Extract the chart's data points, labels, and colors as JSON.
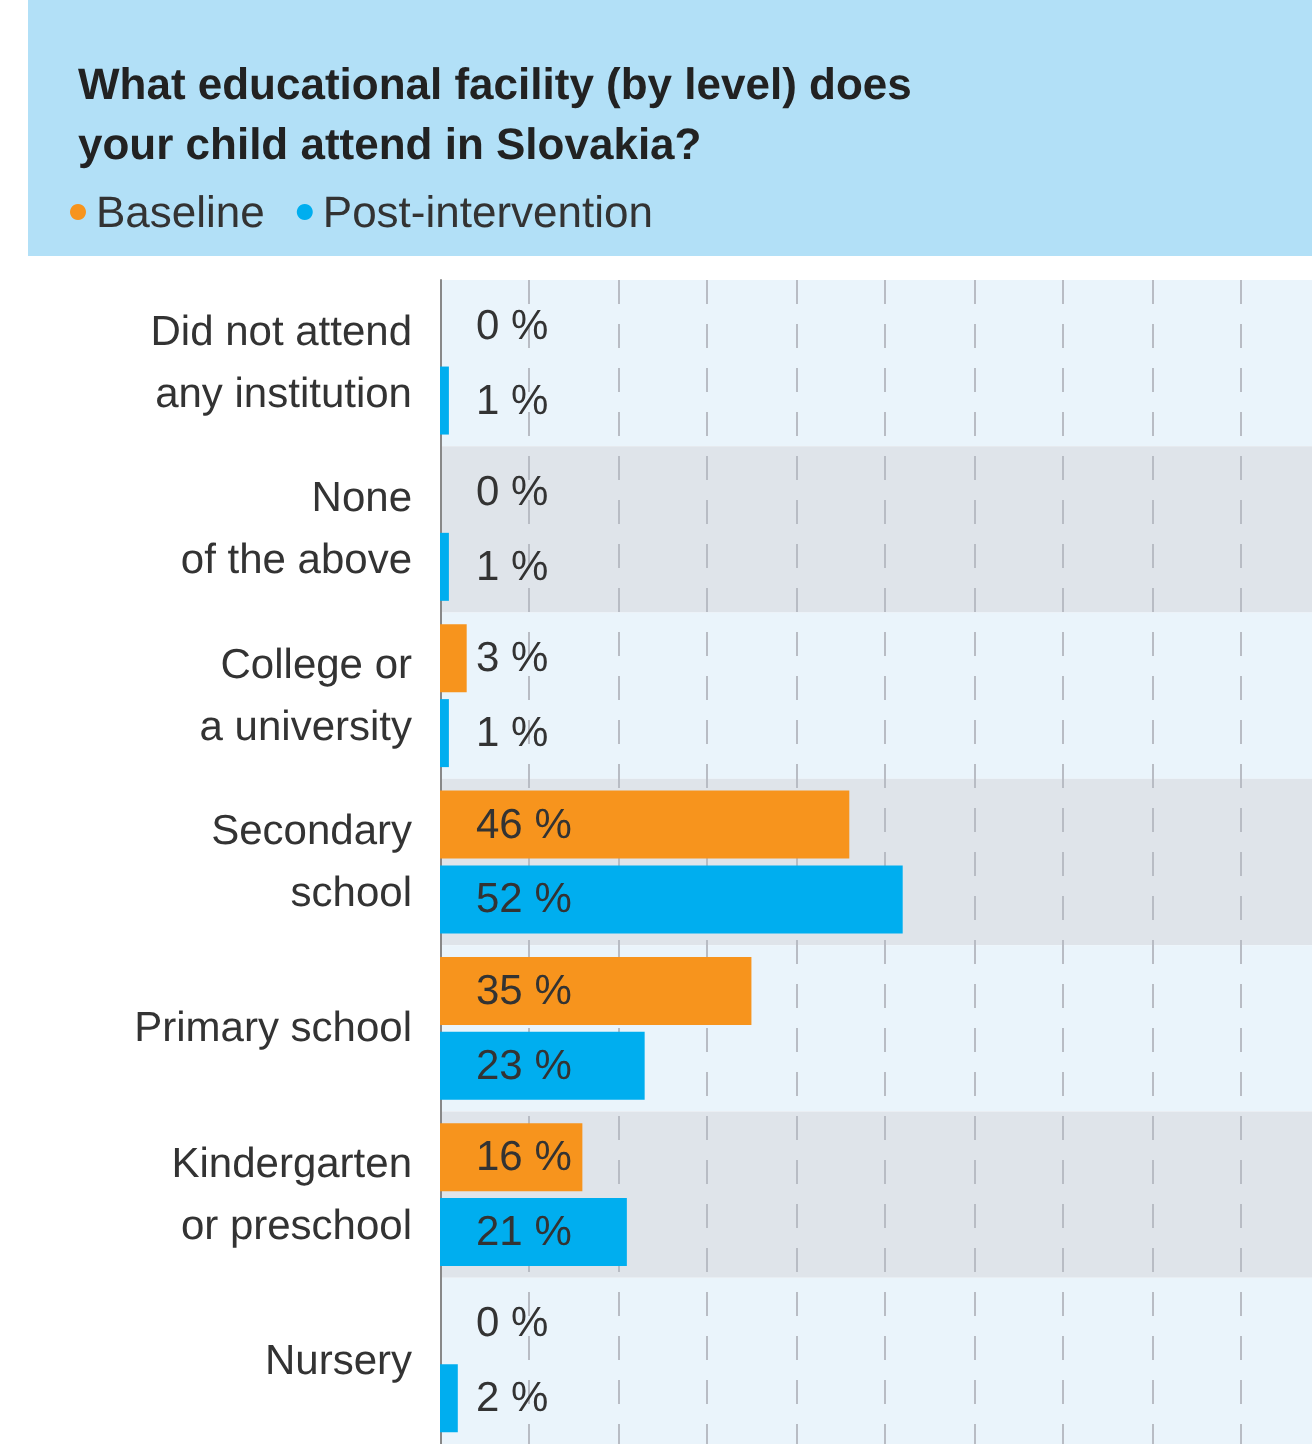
{
  "chart_data": {
    "type": "bar",
    "orientation": "horizontal",
    "title": "What educational facility (by level) does\nyour child attend in Slovakia?",
    "categories": [
      "Did not attend\nany institution",
      "None\nof the above",
      "College or\na university",
      "Secondary\nschool",
      "Primary school",
      "Kindergarten\nor preschool",
      "Nursery"
    ],
    "series": [
      {
        "name": "Baseline",
        "color": "#f7941d",
        "values": [
          0,
          0,
          3,
          46,
          35,
          16,
          0
        ],
        "value_labels": [
          "0 %",
          "0 %",
          "3 %",
          "46 %",
          "35 %",
          "16 %",
          "0 %"
        ]
      },
      {
        "name": "Post-intervention",
        "color": "#00aeef",
        "values": [
          1,
          1,
          1,
          52,
          23,
          21,
          2
        ],
        "value_labels": [
          "1 %",
          "1 %",
          "1 %",
          "52 %",
          "23 %",
          "21 %",
          "2 %"
        ]
      }
    ],
    "xlim": [
      0,
      98
    ],
    "xticks": [
      {
        "value": 0,
        "label": null
      },
      {
        "value": 10,
        "label": null
      },
      {
        "value": 20,
        "label": null
      },
      {
        "value": 30,
        "label": null
      },
      {
        "value": 40,
        "label": null
      },
      {
        "value": 50,
        "label": null
      },
      {
        "value": 60,
        "label": null
      },
      {
        "value": 70,
        "label": null
      },
      {
        "value": 80,
        "label": null
      },
      {
        "value": 90,
        "label": null
      }
    ],
    "grid": "x",
    "legend": "top left",
    "tick_labels": "y"
  }
}
